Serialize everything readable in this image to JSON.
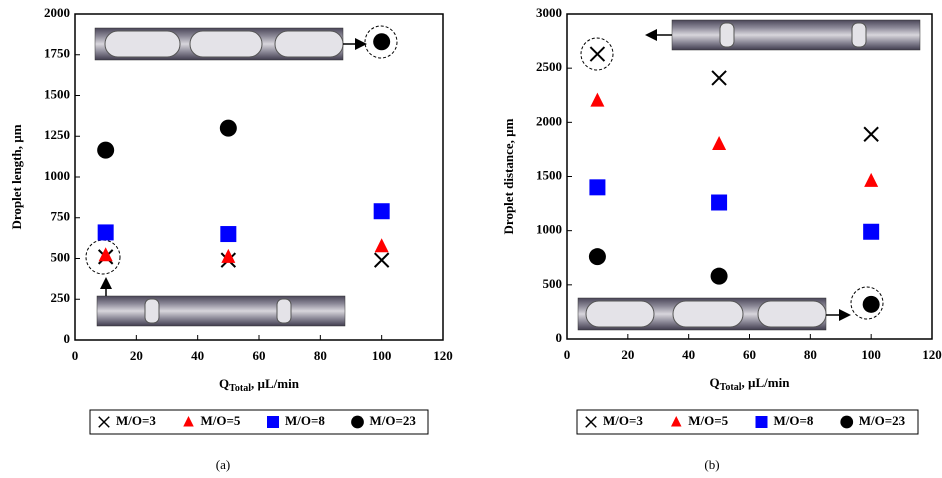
{
  "chart_data": [
    {
      "type": "scatter",
      "y_label": "Droplet length, µm",
      "x_label": [
        "Q",
        "Total",
        ", µL/min"
      ],
      "caption": "(a)",
      "x": [
        10,
        50,
        100
      ],
      "xlim": [
        0,
        120
      ],
      "xticks": [
        0,
        20,
        40,
        60,
        80,
        100,
        120
      ],
      "ylim": [
        0,
        2000
      ],
      "yticks": [
        0,
        250,
        500,
        750,
        1000,
        1250,
        1500,
        1750,
        2000
      ],
      "series": [
        {
          "name": "M/O=3",
          "marker": "x",
          "color": "#000000",
          "values": [
            510,
            490,
            490
          ]
        },
        {
          "name": "M/O=5",
          "marker": "triangle",
          "color": "#ff0000",
          "values": [
            520,
            510,
            575
          ]
        },
        {
          "name": "M/O=8",
          "marker": "square",
          "color": "#0000ff",
          "values": [
            660,
            650,
            790
          ]
        },
        {
          "name": "M/O=23",
          "marker": "circle",
          "color": "#000000",
          "values": [
            1165,
            1300,
            1830
          ]
        }
      ]
    },
    {
      "type": "scatter",
      "y_label": "Droplet distance, µm",
      "x_label": [
        "Q",
        "Total",
        ", µL/min"
      ],
      "caption": "(b)",
      "x": [
        10,
        50,
        100
      ],
      "xlim": [
        0,
        120
      ],
      "xticks": [
        0,
        20,
        40,
        60,
        80,
        100,
        120
      ],
      "ylim": [
        0,
        3000
      ],
      "yticks": [
        0,
        500,
        1000,
        1500,
        2000,
        2500,
        3000
      ],
      "series": [
        {
          "name": "M/O=3",
          "marker": "x",
          "color": "#000000",
          "values": [
            2630,
            2410,
            1890
          ]
        },
        {
          "name": "M/O=5",
          "marker": "triangle",
          "color": "#ff0000",
          "values": [
            2200,
            1800,
            1460
          ]
        },
        {
          "name": "M/O=8",
          "marker": "square",
          "color": "#0000ff",
          "values": [
            1400,
            1260,
            990
          ]
        },
        {
          "name": "M/O=23",
          "marker": "circle",
          "color": "#000000",
          "values": [
            760,
            580,
            320
          ]
        }
      ]
    }
  ]
}
